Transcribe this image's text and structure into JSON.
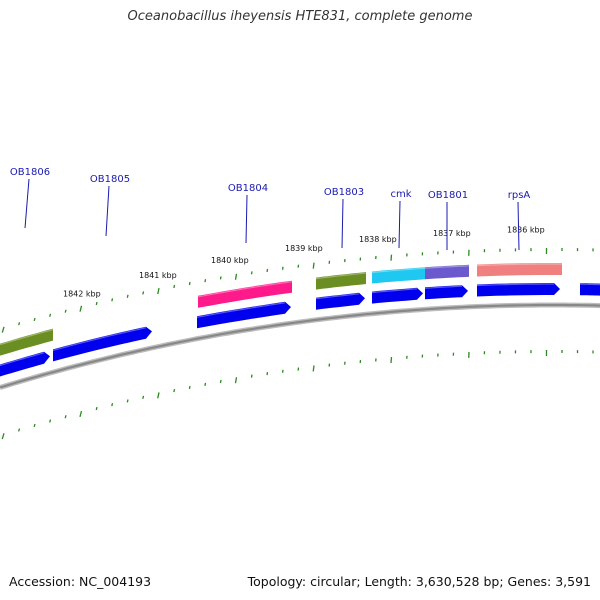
{
  "title": "Oceanobacillus iheyensis HTE831, complete genome",
  "footer": {
    "accession": "Accession: NC_004193",
    "stats": "Topology: circular; Length: 3,630,528 bp; Genes: 3,591"
  },
  "colors": {
    "backbone": "#888888",
    "tick": "#2a8a1e",
    "cds_blue": "#0000ee",
    "olive": "#6b8e23",
    "magenta": "#ff1a8c",
    "cyan": "#1ec8f0",
    "slate": "#6a5acd",
    "salmon": "#f08080",
    "label": "#1a1ab0"
  },
  "kbp_labels": [
    "1842 kbp",
    "1841 kbp",
    "1840 kbp",
    "1839 kbp",
    "1838 kbp",
    "1837 kbp",
    "1836 kbp"
  ],
  "gene_labels": [
    "OB1806",
    "OB1805",
    "OB1804",
    "OB1803",
    "cmk",
    "OB1801",
    "rpsA"
  ],
  "features": [
    {
      "name": "OB1806 feature",
      "color": "olive"
    },
    {
      "name": "OB1804 feature",
      "color": "magenta"
    },
    {
      "name": "OB1803 feature",
      "color": "olive"
    },
    {
      "name": "cmk feature",
      "color": "cyan"
    },
    {
      "name": "OB1801 feature",
      "color": "slate"
    },
    {
      "name": "rpsA feature",
      "color": "salmon"
    }
  ]
}
